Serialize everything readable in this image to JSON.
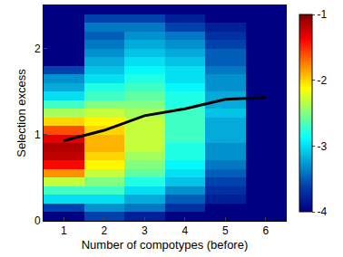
{
  "chart_data": {
    "type": "heatmap",
    "x_label": "Number of compotypes (before)",
    "y_label": "Selection excess",
    "x": [
      1,
      2,
      3,
      4,
      5,
      6
    ],
    "y": [
      0.05,
      0.15,
      0.25,
      0.35,
      0.45,
      0.55,
      0.65,
      0.75,
      0.85,
      0.95,
      1.05,
      1.15,
      1.25,
      1.35,
      1.45,
      1.55,
      1.65,
      1.75,
      1.85,
      1.95,
      2.05,
      2.15,
      2.25,
      2.35,
      2.45
    ],
    "z": [
      [
        -4,
        -3.6,
        -3.8,
        -4,
        -4,
        -4
      ],
      [
        -3.6,
        -3.3,
        -3.4,
        -3.7,
        -4,
        -4
      ],
      [
        -3,
        -3,
        -3.2,
        -3.5,
        -3.8,
        -4
      ],
      [
        -2.7,
        -2.7,
        -3,
        -3.3,
        -3.7,
        -4
      ],
      [
        -2.3,
        -2.5,
        -2.8,
        -3.1,
        -3.6,
        -4
      ],
      [
        -1.8,
        -2.3,
        -2.6,
        -3,
        -3.5,
        -4
      ],
      [
        -1.4,
        -2.1,
        -2.5,
        -2.9,
        -3.4,
        -4
      ],
      [
        -1.2,
        -2,
        -2.4,
        -2.8,
        -3.3,
        -4
      ],
      [
        -1.15,
        -1.9,
        -2.3,
        -2.8,
        -3.3,
        -4
      ],
      [
        -1.3,
        -1.9,
        -2.3,
        -2.7,
        -3.2,
        -4
      ],
      [
        -1.6,
        -2,
        -2.3,
        -2.7,
        -3.2,
        -4
      ],
      [
        -2,
        -2.1,
        -2.3,
        -2.7,
        -3.2,
        -4
      ],
      [
        -2.4,
        -2.3,
        -2.4,
        -2.7,
        -3.1,
        -4
      ],
      [
        -2.7,
        -2.5,
        -2.5,
        -2.8,
        -3.2,
        -4
      ],
      [
        -3,
        -2.7,
        -2.6,
        -2.8,
        -3.2,
        -4
      ],
      [
        -3.2,
        -2.8,
        -2.7,
        -2.9,
        -3.3,
        -4
      ],
      [
        -3.3,
        -3,
        -2.8,
        -3,
        -3.3,
        -4
      ],
      [
        -3.6,
        -3.1,
        -2.9,
        -3,
        -3.4,
        -4
      ],
      [
        -4,
        -3.2,
        -3,
        -3.1,
        -3.5,
        -4
      ],
      [
        -4,
        -3.3,
        -3.1,
        -3.2,
        -3.5,
        -4
      ],
      [
        -4,
        -3.4,
        -3.2,
        -3.3,
        -3.6,
        -4
      ],
      [
        -4,
        -3.5,
        -3.3,
        -3.4,
        -3.7,
        -4
      ],
      [
        -4,
        -3.4,
        -3.4,
        -3.6,
        -3.8,
        -4
      ],
      [
        -4,
        -3.6,
        -3.6,
        -3.8,
        -4,
        -4
      ],
      [
        -4,
        -4,
        -4,
        -4,
        -4,
        -4
      ]
    ],
    "xlim": [
      0.5,
      6.5
    ],
    "xticks": [
      1,
      2,
      3,
      4,
      5,
      6
    ],
    "ylim": [
      0,
      2.5
    ],
    "yticks": [
      0,
      1,
      2
    ],
    "color_range": [
      -4,
      -1
    ],
    "color_ticks": [
      -4,
      -3,
      -2,
      -1
    ],
    "series": [
      {
        "type": "line",
        "color": "#000000",
        "values": [
          0.93,
          1.05,
          1.22,
          1.3,
          1.41,
          1.43
        ]
      }
    ]
  }
}
